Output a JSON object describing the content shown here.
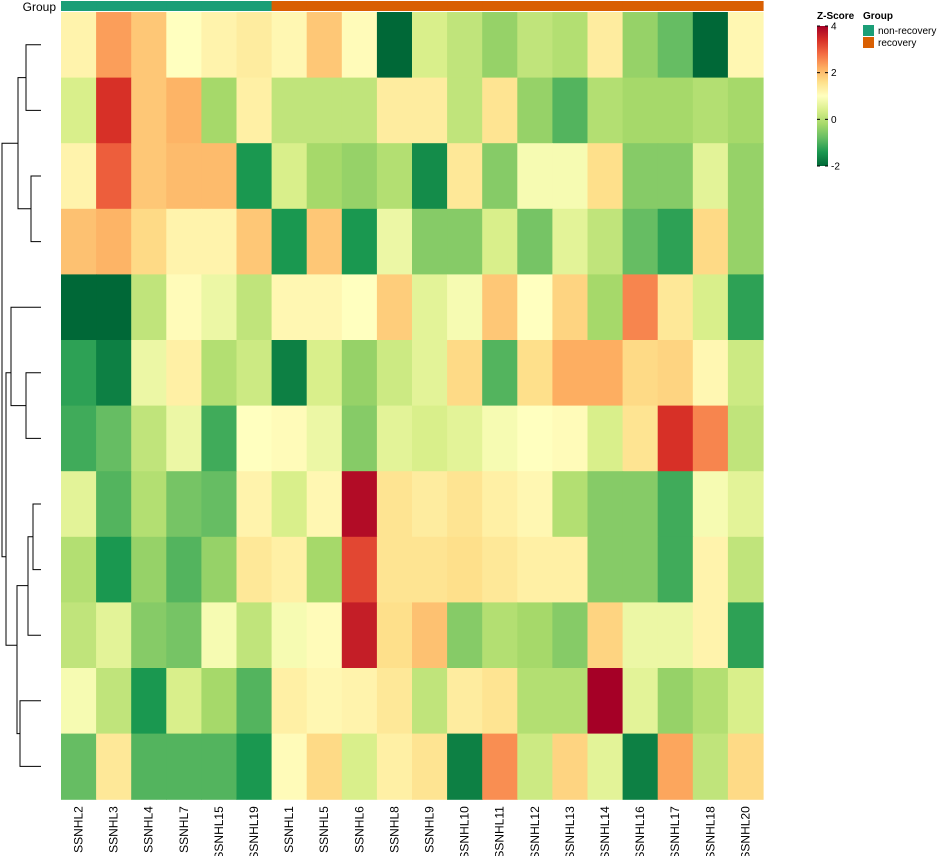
{
  "chart_data": {
    "type": "heatmap",
    "annotation_label": "Group",
    "columns": [
      "SSNHL2",
      "SSNHL3",
      "SSNHL4",
      "SSNHL7",
      "SSNHL15",
      "SSNHL19",
      "SSNHL1",
      "SSNHL5",
      "SSNHL6",
      "SSNHL8",
      "SSNHL9",
      "SSNHL10",
      "SSNHL11",
      "SSNHL12",
      "SSNHL13",
      "SSNHL14",
      "SSNHL16",
      "SSNHL17",
      "SSNHL18",
      "SSNHL20"
    ],
    "column_groups": [
      "non-recovery",
      "non-recovery",
      "non-recovery",
      "non-recovery",
      "non-recovery",
      "non-recovery",
      "recovery",
      "recovery",
      "recovery",
      "recovery",
      "recovery",
      "recovery",
      "recovery",
      "recovery",
      "recovery",
      "recovery",
      "recovery",
      "recovery",
      "recovery",
      "recovery"
    ],
    "values": [
      [
        0.3,
        1.8,
        1.2,
        0.0,
        0.3,
        0.5,
        0.2,
        1.2,
        0.1,
        -2.0,
        -0.4,
        -0.6,
        -0.9,
        -0.6,
        -0.7,
        0.5,
        -0.9,
        -1.2,
        -2.4,
        0.2
      ],
      [
        -0.4,
        3.2,
        1.2,
        1.5,
        -0.8,
        0.4,
        -0.6,
        -0.6,
        -0.6,
        0.5,
        0.5,
        -0.6,
        0.7,
        -0.9,
        -1.3,
        -0.7,
        -0.8,
        -0.8,
        -0.7,
        -0.8
      ],
      [
        0.3,
        2.6,
        1.2,
        1.4,
        1.4,
        -1.6,
        -0.4,
        -0.8,
        -0.9,
        -0.7,
        -1.7,
        0.6,
        -1.0,
        -0.1,
        -0.1,
        0.8,
        -1.0,
        -1.0,
        -0.3,
        -0.9
      ],
      [
        1.3,
        1.5,
        0.9,
        0.3,
        0.3,
        1.2,
        -1.6,
        1.2,
        -1.6,
        -0.2,
        -1.0,
        -1.0,
        -0.4,
        -1.1,
        -0.3,
        -0.6,
        -1.2,
        -1.5,
        0.9,
        -0.9
      ],
      [
        -2.1,
        -2.1,
        -0.6,
        0.1,
        -0.2,
        -0.6,
        0.2,
        0.2,
        0.0,
        1.1,
        -0.3,
        -0.1,
        1.2,
        0.0,
        1.0,
        -0.8,
        2.1,
        0.6,
        -0.4,
        -1.5
      ],
      [
        -1.5,
        -1.8,
        -0.2,
        0.4,
        -0.7,
        -0.5,
        -1.8,
        -0.4,
        -0.9,
        -0.5,
        -0.3,
        0.9,
        -1.3,
        0.8,
        1.6,
        1.6,
        0.9,
        1.0,
        0.2,
        -0.5
      ],
      [
        -1.4,
        -1.2,
        -0.6,
        -0.2,
        -1.4,
        0.0,
        0.1,
        -0.2,
        -1.0,
        -0.3,
        -0.4,
        -0.3,
        -0.1,
        0.0,
        0.1,
        -0.4,
        0.7,
        3.2,
        2.1,
        -0.6
      ],
      [
        -0.3,
        -1.3,
        -0.7,
        -1.1,
        -1.2,
        0.3,
        -0.4,
        0.2,
        3.8,
        0.7,
        0.5,
        0.7,
        0.4,
        0.2,
        -0.7,
        -1.0,
        -1.0,
        -1.4,
        -0.1,
        -0.3
      ],
      [
        -0.7,
        -1.6,
        -0.9,
        -1.3,
        -0.9,
        0.6,
        0.4,
        -0.8,
        2.9,
        0.7,
        0.7,
        0.8,
        0.6,
        0.4,
        0.4,
        -1.0,
        -1.0,
        -1.4,
        0.3,
        -0.6
      ],
      [
        -0.6,
        -0.3,
        -1.0,
        -1.1,
        -0.1,
        -0.6,
        -0.1,
        0.1,
        3.5,
        0.8,
        1.3,
        -1.0,
        -0.7,
        -0.8,
        -1.0,
        1.0,
        -0.2,
        -0.2,
        0.3,
        -1.5
      ],
      [
        -0.1,
        -0.6,
        -1.6,
        -0.4,
        -0.8,
        -1.3,
        0.4,
        0.2,
        0.3,
        0.6,
        -0.6,
        0.5,
        0.7,
        -0.7,
        -0.7,
        4.0,
        -0.3,
        -0.9,
        -0.7,
        -0.4
      ],
      [
        -1.2,
        0.6,
        -1.3,
        -1.3,
        -1.3,
        -1.6,
        0.1,
        0.9,
        -0.4,
        0.4,
        0.7,
        -1.8,
        2.0,
        -0.5,
        1.0,
        -0.3,
        -1.8,
        1.7,
        -0.6,
        0.9
      ]
    ],
    "color_scale": {
      "min": -2,
      "mid": 0,
      "max": 4,
      "colors": [
        "#006837",
        "#1a9850",
        "#66bd63",
        "#a6d96a",
        "#d9ef8b",
        "#ffffbf",
        "#fee08b",
        "#fdae61",
        "#f46d43",
        "#d73027",
        "#a50026"
      ]
    },
    "legend": {
      "zscore_title": "Z-Score",
      "zscore_ticks": [
        4,
        2,
        0,
        -2
      ],
      "group_title": "Group",
      "groups": [
        {
          "label": "non-recovery",
          "color": "#1b9e77"
        },
        {
          "label": "recovery",
          "color": "#d95f02"
        }
      ]
    },
    "dendrogram": "rows",
    "legend_position": "right"
  }
}
